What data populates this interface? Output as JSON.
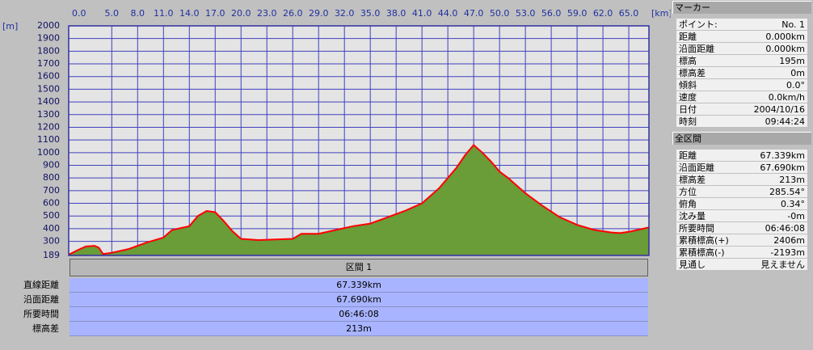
{
  "chart_data": {
    "type": "area",
    "x_unit": "[km]",
    "y_unit": "[m]",
    "x": [
      0,
      1,
      2,
      3,
      3.5,
      4,
      5,
      7,
      9,
      11,
      12,
      14,
      15,
      16,
      17,
      18,
      19,
      20,
      22,
      24,
      26,
      27,
      29,
      31,
      33,
      35,
      37,
      39,
      41,
      43,
      45,
      46,
      47,
      48,
      49,
      50,
      51,
      53,
      55,
      57,
      59,
      61,
      63,
      64,
      65,
      66,
      67.339
    ],
    "values": [
      195,
      230,
      260,
      265,
      250,
      200,
      210,
      240,
      290,
      330,
      390,
      420,
      500,
      540,
      530,
      460,
      380,
      320,
      310,
      315,
      320,
      360,
      360,
      390,
      420,
      440,
      490,
      540,
      600,
      720,
      880,
      980,
      1060,
      1000,
      930,
      850,
      800,
      680,
      580,
      490,
      430,
      390,
      370,
      365,
      375,
      390,
      410
    ],
    "color": "#6a9c38",
    "line_color": "#ff0000",
    "xlim": [
      0,
      67.339
    ],
    "ylim": [
      189,
      2000
    ],
    "xticks": [
      {
        "value": 0,
        "label": "0.0"
      },
      {
        "value": 5,
        "label": "5.0"
      },
      {
        "value": 8,
        "label": "8.0"
      },
      {
        "value": 11,
        "label": "11.0"
      },
      {
        "value": 14,
        "label": "14.0"
      },
      {
        "value": 17,
        "label": "17.0"
      },
      {
        "value": 20,
        "label": "20.0"
      },
      {
        "value": 23,
        "label": "23.0"
      },
      {
        "value": 26,
        "label": "26.0"
      },
      {
        "value": 29,
        "label": "29.0"
      },
      {
        "value": 32,
        "label": "32.0"
      },
      {
        "value": 35,
        "label": "35.0"
      },
      {
        "value": 38,
        "label": "38.0"
      },
      {
        "value": 41,
        "label": "41.0"
      },
      {
        "value": 44,
        "label": "44.0"
      },
      {
        "value": 47,
        "label": "47.0"
      },
      {
        "value": 50,
        "label": "50.0"
      },
      {
        "value": 53,
        "label": "53.0"
      },
      {
        "value": 56,
        "label": "56.0"
      },
      {
        "value": 59,
        "label": "59.0"
      },
      {
        "value": 62,
        "label": "62.0"
      },
      {
        "value": 65,
        "label": "65.0"
      }
    ],
    "yticks": [
      189,
      300,
      400,
      500,
      600,
      700,
      800,
      900,
      1000,
      1100,
      1200,
      1300,
      1400,
      1500,
      1600,
      1700,
      1800,
      1900,
      2000
    ],
    "grid": true
  },
  "segment_table": {
    "header": "区間 1",
    "rows": [
      [
        "直線距離",
        "67.339km"
      ],
      [
        "沿面距離",
        "67.690km"
      ],
      [
        "所要時間",
        "06:46:08"
      ],
      [
        "標高差",
        "213m"
      ]
    ]
  },
  "marker_panel": {
    "title": "マーカー",
    "rows": [
      [
        "ポイント:",
        "No. 1"
      ],
      [
        "距離",
        "0.000km"
      ],
      [
        "沿面距離",
        "0.000km"
      ],
      [
        "標高",
        "195m"
      ],
      [
        "標高差",
        "0m"
      ],
      [
        "傾斜",
        "0.0°"
      ],
      [
        "速度",
        "0.0km/h"
      ],
      [
        "日付",
        "2004/10/16"
      ],
      [
        "時刻",
        "09:44:24"
      ]
    ]
  },
  "total_panel": {
    "title": "全区間",
    "rows": [
      [
        "距離",
        "67.339km"
      ],
      [
        "沿面距離",
        "67.690km"
      ],
      [
        "標高差",
        "213m"
      ],
      [
        "方位",
        "285.54°"
      ],
      [
        "俯角",
        "0.34°"
      ],
      [
        "沈み量",
        "-0m"
      ],
      [
        "所要時間",
        "06:46:08"
      ],
      [
        "累積標高(+)",
        "2406m"
      ],
      [
        "累積標高(-)",
        "-2193m"
      ],
      [
        "見通し",
        "見えません"
      ]
    ]
  }
}
